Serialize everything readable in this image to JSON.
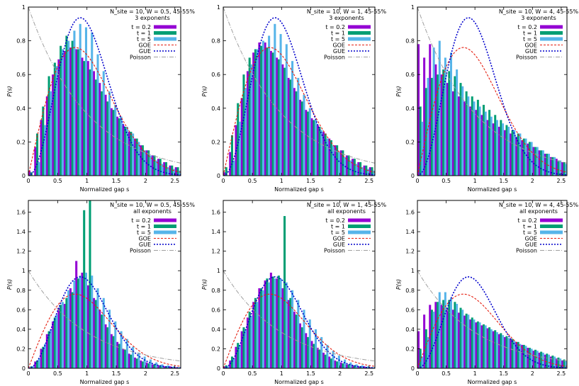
{
  "x_axis_label": "Normalized gap s",
  "y_axis_label": "P(s)",
  "legend_labels": {
    "t02": "t = 0.2",
    "t1": "t = 1",
    "t5": "t = 5",
    "goe": "GOE",
    "gue": "GUE",
    "poisson": "Poisson"
  },
  "colors": {
    "t02": "#9400d3",
    "t1": "#009e73",
    "t5": "#56b4e9",
    "goe": "#e51e10",
    "gue": "#0000cc",
    "poisson": "#a0a0a0"
  },
  "chart_data": [
    {
      "type": "bar",
      "title_line1": "N_site = 10, W = 0.5, 45-55%",
      "title_line2": "3 exponents",
      "xlim": [
        0,
        2.6
      ],
      "ylim": [
        0,
        1
      ],
      "xticks": [
        0,
        0.5,
        1,
        1.5,
        2,
        2.5
      ],
      "yticks": [
        0,
        0.2,
        0.4,
        0.6,
        0.8,
        1
      ],
      "legend_series": [
        "t02",
        "t1",
        "t5",
        "goe",
        "gue",
        "poisson"
      ],
      "curves_shown": [
        "goe",
        "gue",
        "poisson"
      ],
      "bin_width": 0.1,
      "x": [
        0.05,
        0.15,
        0.25,
        0.35,
        0.45,
        0.55,
        0.65,
        0.75,
        0.85,
        0.95,
        1.05,
        1.15,
        1.25,
        1.35,
        1.45,
        1.55,
        1.65,
        1.75,
        1.85,
        1.95,
        2.05,
        2.15,
        2.25,
        2.35,
        2.45,
        2.55
      ],
      "series": [
        {
          "name": "t = 0.2",
          "values": [
            0.03,
            0.17,
            0.33,
            0.47,
            0.6,
            0.69,
            0.74,
            0.76,
            0.75,
            0.7,
            0.68,
            0.62,
            0.55,
            0.48,
            0.4,
            0.35,
            0.3,
            0.26,
            0.22,
            0.18,
            0.15,
            0.12,
            0.1,
            0.08,
            0.06,
            0.05
          ]
        },
        {
          "name": "t = 1",
          "values": [
            0.02,
            0.25,
            0.41,
            0.59,
            0.67,
            0.77,
            0.83,
            0.8,
            0.75,
            0.68,
            0.63,
            0.57,
            0.5,
            0.44,
            0.39,
            0.34,
            0.29,
            0.26,
            0.22,
            0.18,
            0.15,
            0.12,
            0.1,
            0.08,
            0.06,
            0.05
          ]
        },
        {
          "name": "t = 5",
          "values": [
            0.0,
            0.08,
            0.3,
            0.5,
            0.65,
            0.75,
            0.8,
            0.86,
            0.9,
            0.88,
            0.85,
            0.72,
            0.62,
            0.5,
            0.42,
            0.35,
            0.29,
            0.25,
            0.2,
            0.15,
            0.12,
            0.09,
            0.07,
            0.05,
            0.04,
            0.03
          ]
        }
      ]
    },
    {
      "type": "bar",
      "title_line1": "N_site = 10, W = 1, 45-55%",
      "title_line2": "3 exponents",
      "xlim": [
        0,
        2.6
      ],
      "ylim": [
        0,
        1
      ],
      "xticks": [
        0,
        0.5,
        1,
        1.5,
        2,
        2.5
      ],
      "yticks": [
        0,
        0.2,
        0.4,
        0.6,
        0.8,
        1
      ],
      "legend_series": [
        "t02",
        "t1",
        "t5",
        "goe",
        "gue",
        "poisson"
      ],
      "curves_shown": [
        "goe",
        "gue",
        "poisson"
      ],
      "bin_width": 0.1,
      "x": [
        0.05,
        0.15,
        0.25,
        0.35,
        0.45,
        0.55,
        0.65,
        0.75,
        0.85,
        0.95,
        1.05,
        1.15,
        1.25,
        1.35,
        1.45,
        1.55,
        1.65,
        1.75,
        1.85,
        1.95,
        2.05,
        2.15,
        2.25,
        2.35,
        2.45,
        2.55
      ],
      "series": [
        {
          "name": "t = 0.2",
          "values": [
            0.02,
            0.14,
            0.3,
            0.46,
            0.62,
            0.73,
            0.79,
            0.79,
            0.74,
            0.7,
            0.66,
            0.58,
            0.52,
            0.45,
            0.39,
            0.34,
            0.3,
            0.26,
            0.22,
            0.18,
            0.15,
            0.12,
            0.1,
            0.08,
            0.06,
            0.05
          ]
        },
        {
          "name": "t = 1",
          "values": [
            0.05,
            0.24,
            0.43,
            0.6,
            0.7,
            0.75,
            0.77,
            0.76,
            0.73,
            0.69,
            0.64,
            0.57,
            0.5,
            0.44,
            0.38,
            0.33,
            0.29,
            0.25,
            0.21,
            0.18,
            0.15,
            0.12,
            0.1,
            0.08,
            0.06,
            0.05
          ]
        },
        {
          "name": "t = 5",
          "values": [
            0.0,
            0.09,
            0.32,
            0.52,
            0.66,
            0.75,
            0.8,
            0.83,
            0.9,
            0.84,
            0.78,
            0.68,
            0.58,
            0.48,
            0.4,
            0.33,
            0.27,
            0.22,
            0.18,
            0.14,
            0.11,
            0.09,
            0.07,
            0.05,
            0.04,
            0.03
          ]
        }
      ]
    },
    {
      "type": "bar",
      "title_line1": "N_site = 10, W = 4, 45-55%",
      "title_line2": "3 exponents",
      "xlim": [
        0,
        2.6
      ],
      "ylim": [
        0,
        1
      ],
      "xticks": [
        0,
        0.5,
        1,
        1.5,
        2,
        2.5
      ],
      "yticks": [
        0,
        0.2,
        0.4,
        0.6,
        0.8,
        1
      ],
      "legend_series": [
        "t02",
        "t1",
        "t5",
        "goe",
        "gue",
        "poisson"
      ],
      "curves_shown": [
        "goe",
        "gue",
        "poisson"
      ],
      "bin_width": 0.1,
      "x": [
        0.05,
        0.15,
        0.25,
        0.35,
        0.45,
        0.55,
        0.65,
        0.75,
        0.85,
        0.95,
        1.05,
        1.15,
        1.25,
        1.35,
        1.45,
        1.55,
        1.65,
        1.75,
        1.85,
        1.95,
        2.05,
        2.15,
        2.25,
        2.35,
        2.45,
        2.55
      ],
      "series": [
        {
          "name": "t = 0.2",
          "values": [
            0.78,
            0.7,
            0.78,
            0.66,
            0.6,
            0.55,
            0.5,
            0.47,
            0.44,
            0.41,
            0.39,
            0.36,
            0.33,
            0.31,
            0.29,
            0.27,
            0.25,
            0.23,
            0.21,
            0.19,
            0.17,
            0.15,
            0.13,
            0.11,
            0.1,
            0.08
          ]
        },
        {
          "name": "t = 1",
          "values": [
            0.41,
            0.52,
            0.58,
            0.6,
            0.63,
            0.62,
            0.59,
            0.55,
            0.5,
            0.47,
            0.45,
            0.42,
            0.39,
            0.36,
            0.33,
            0.3,
            0.27,
            0.25,
            0.22,
            0.2,
            0.17,
            0.15,
            0.13,
            0.11,
            0.09,
            0.08
          ]
        },
        {
          "name": "t = 5",
          "values": [
            0.32,
            0.58,
            0.76,
            0.8,
            0.7,
            0.73,
            0.63,
            0.53,
            0.47,
            0.44,
            0.41,
            0.38,
            0.35,
            0.33,
            0.31,
            0.29,
            0.27,
            0.25,
            0.22,
            0.2,
            0.17,
            0.15,
            0.13,
            0.11,
            0.09,
            0.07
          ]
        }
      ]
    },
    {
      "type": "bar",
      "title_line1": "N_site = 10, W = 0.5, 45-55%",
      "title_line2": "all exponents",
      "xlim": [
        0,
        2.6
      ],
      "ylim": [
        0,
        1.72
      ],
      "xticks": [
        0,
        0.5,
        1,
        1.5,
        2,
        2.5
      ],
      "yticks": [
        0,
        0.2,
        0.4,
        0.6,
        0.8,
        1,
        1.2,
        1.4,
        1.6
      ],
      "legend_series": [
        "t02",
        "t1",
        "t5",
        "goe",
        "gue",
        "poisson"
      ],
      "curves_shown": [
        "goe",
        "gue",
        "poisson"
      ],
      "bin_width": 0.1,
      "x": [
        0.05,
        0.15,
        0.25,
        0.35,
        0.45,
        0.55,
        0.65,
        0.75,
        0.85,
        0.95,
        1.05,
        1.15,
        1.25,
        1.35,
        1.45,
        1.55,
        1.65,
        1.75,
        1.85,
        1.95,
        2.05,
        2.15,
        2.25,
        2.35,
        2.45,
        2.55
      ],
      "series": [
        {
          "name": "t = 0.2",
          "values": [
            0.01,
            0.07,
            0.2,
            0.35,
            0.48,
            0.62,
            0.66,
            0.82,
            1.1,
            0.98,
            0.85,
            0.72,
            0.6,
            0.45,
            0.35,
            0.27,
            0.2,
            0.15,
            0.11,
            0.08,
            0.06,
            0.04,
            0.03,
            0.02,
            0.02,
            0.01
          ]
        },
        {
          "name": "t = 1",
          "values": [
            0.02,
            0.08,
            0.22,
            0.38,
            0.52,
            0.65,
            0.72,
            0.78,
            0.92,
            1.62,
            1.72,
            0.7,
            0.55,
            0.42,
            0.33,
            0.25,
            0.19,
            0.14,
            0.1,
            0.07,
            0.05,
            0.04,
            0.03,
            0.02,
            0.01,
            0.01
          ]
        },
        {
          "name": "t = 5",
          "values": [
            0.02,
            0.1,
            0.25,
            0.4,
            0.55,
            0.68,
            0.8,
            0.9,
            0.95,
            0.98,
            0.95,
            0.82,
            0.72,
            0.6,
            0.48,
            0.38,
            0.3,
            0.22,
            0.16,
            0.12,
            0.09,
            0.06,
            0.04,
            0.03,
            0.02,
            0.01
          ]
        }
      ]
    },
    {
      "type": "bar",
      "title_line1": "N_site = 10, W = 1, 45-55%",
      "title_line2": "all exponents",
      "xlim": [
        0,
        2.6
      ],
      "ylim": [
        0,
        1.72
      ],
      "xticks": [
        0,
        0.5,
        1,
        1.5,
        2,
        2.5
      ],
      "yticks": [
        0,
        0.2,
        0.4,
        0.6,
        0.8,
        1,
        1.2,
        1.4,
        1.6
      ],
      "legend_series": [
        "t02",
        "t1",
        "t5",
        "goe",
        "gue",
        "poisson"
      ],
      "curves_shown": [
        "goe",
        "gue",
        "poisson"
      ],
      "bin_width": 0.1,
      "x": [
        0.05,
        0.15,
        0.25,
        0.35,
        0.45,
        0.55,
        0.65,
        0.75,
        0.85,
        0.95,
        1.05,
        1.15,
        1.25,
        1.35,
        1.45,
        1.55,
        1.65,
        1.75,
        1.85,
        1.95,
        2.05,
        2.15,
        2.25,
        2.35,
        2.45,
        2.55
      ],
      "series": [
        {
          "name": "t = 0.2",
          "values": [
            0.02,
            0.08,
            0.22,
            0.38,
            0.52,
            0.68,
            0.82,
            0.9,
            0.98,
            0.92,
            0.82,
            0.7,
            0.58,
            0.46,
            0.36,
            0.28,
            0.21,
            0.16,
            0.12,
            0.08,
            0.06,
            0.04,
            0.03,
            0.02,
            0.02,
            0.01
          ]
        },
        {
          "name": "t = 1",
          "values": [
            0.03,
            0.12,
            0.26,
            0.42,
            0.58,
            0.72,
            0.82,
            0.92,
            0.94,
            0.95,
            1.56,
            0.72,
            0.55,
            0.42,
            0.32,
            0.25,
            0.19,
            0.14,
            0.1,
            0.07,
            0.05,
            0.04,
            0.03,
            0.02,
            0.01,
            0.01
          ]
        },
        {
          "name": "t = 5",
          "values": [
            0.02,
            0.1,
            0.24,
            0.4,
            0.54,
            0.68,
            0.8,
            0.88,
            0.92,
            0.92,
            0.88,
            0.8,
            0.7,
            0.6,
            0.5,
            0.4,
            0.32,
            0.24,
            0.18,
            0.13,
            0.09,
            0.06,
            0.04,
            0.03,
            0.02,
            0.01
          ]
        }
      ]
    },
    {
      "type": "bar",
      "title_line1": "N_site = 10, W = 4, 45-55%",
      "title_line2": "all exponents",
      "xlim": [
        0,
        2.6
      ],
      "ylim": [
        0,
        1.72
      ],
      "xticks": [
        0,
        0.5,
        1,
        1.5,
        2,
        2.5
      ],
      "yticks": [
        0,
        0.2,
        0.4,
        0.6,
        0.8,
        1,
        1.2,
        1.4,
        1.6
      ],
      "legend_series": [
        "t02",
        "t1",
        "t5",
        "goe",
        "gue",
        "poisson"
      ],
      "curves_shown": [
        "goe",
        "gue",
        "poisson"
      ],
      "bin_width": 0.1,
      "x": [
        0.05,
        0.15,
        0.25,
        0.35,
        0.45,
        0.55,
        0.65,
        0.75,
        0.85,
        0.95,
        1.05,
        1.15,
        1.25,
        1.35,
        1.45,
        1.55,
        1.65,
        1.75,
        1.85,
        1.95,
        2.05,
        2.15,
        2.25,
        2.35,
        2.45,
        2.55
      ],
      "series": [
        {
          "name": "t = 0.2",
          "values": [
            0.38,
            0.55,
            0.65,
            0.68,
            0.65,
            0.62,
            0.6,
            0.57,
            0.54,
            0.5,
            0.47,
            0.44,
            0.41,
            0.38,
            0.35,
            0.32,
            0.3,
            0.27,
            0.24,
            0.21,
            0.18,
            0.16,
            0.14,
            0.12,
            0.1,
            0.08
          ]
        },
        {
          "name": "t = 1",
          "values": [
            0.2,
            0.4,
            0.6,
            0.68,
            0.7,
            0.7,
            0.68,
            0.62,
            0.56,
            0.52,
            0.48,
            0.45,
            0.42,
            0.39,
            0.36,
            0.33,
            0.3,
            0.27,
            0.24,
            0.21,
            0.19,
            0.17,
            0.15,
            0.13,
            0.11,
            0.09
          ]
        },
        {
          "name": "t = 5",
          "values": [
            0.12,
            0.32,
            0.58,
            0.78,
            0.78,
            0.72,
            0.66,
            0.6,
            0.55,
            0.5,
            0.47,
            0.44,
            0.4,
            0.37,
            0.34,
            0.31,
            0.28,
            0.25,
            0.23,
            0.2,
            0.18,
            0.16,
            0.14,
            0.12,
            0.1,
            0.08
          ]
        }
      ]
    }
  ]
}
